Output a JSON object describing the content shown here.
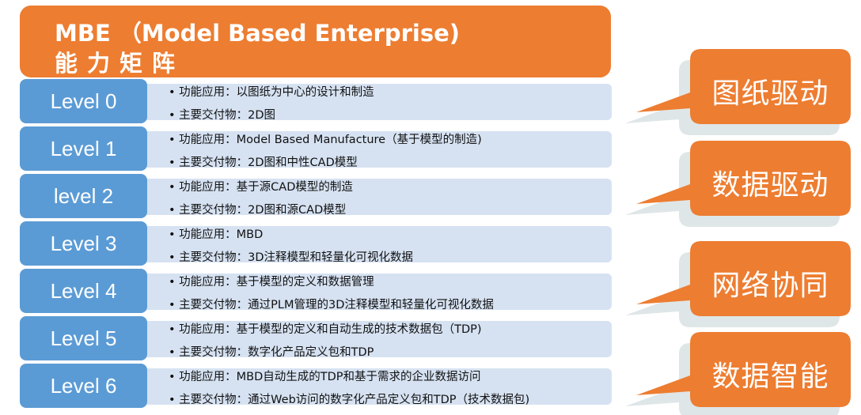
{
  "header": {
    "title": "MBE （Model Based Enterprise)",
    "subtitle": "能力矩阵"
  },
  "levels": [
    {
      "label": "Level 0",
      "func": "• 功能应用：以图纸为中心的设计和制造",
      "deliv": "• 主要交付物：2D图"
    },
    {
      "label": "Level 1",
      "func": "• 功能应用：Model Based Manufacture（基于模型的制造)",
      "deliv": "• 主要交付物：2D图和中性CAD模型"
    },
    {
      "label": "level 2",
      "func": "• 功能应用：基于源CAD模型的制造",
      "deliv": "• 主要交付物：2D图和源CAD模型"
    },
    {
      "label": "Level 3",
      "func": "• 功能应用：MBD",
      "deliv": "• 主要交付物：3D注释模型和轻量化可视化数据"
    },
    {
      "label": "Level 4",
      "func": "• 功能应用：基于模型的定义和数据管理",
      "deliv": "• 主要交付物：通过PLM管理的3D注释模型和轻量化可视化数据"
    },
    {
      "label": "Level 5",
      "func": "• 功能应用：基于模型的定义和自动生成的技术数据包（TDP)",
      "deliv": "• 主要交付物：数字化产品定义包和TDP"
    },
    {
      "label": "Level 6",
      "func": "• 功能应用：MBD自动生成的TDP和基于需求的企业数据访问",
      "deliv": "• 主要交付物：通过Web访问的数字化产品定义包和TDP（技术数据包)"
    }
  ],
  "callouts": [
    "图纸驱动",
    "数据驱动",
    "网络协同",
    "数据智能"
  ],
  "colors": {
    "orange": "#ED7D31",
    "blue": "#5B9BD5",
    "panel": "#D6E2F2",
    "shadow": "#DFE6E8"
  }
}
